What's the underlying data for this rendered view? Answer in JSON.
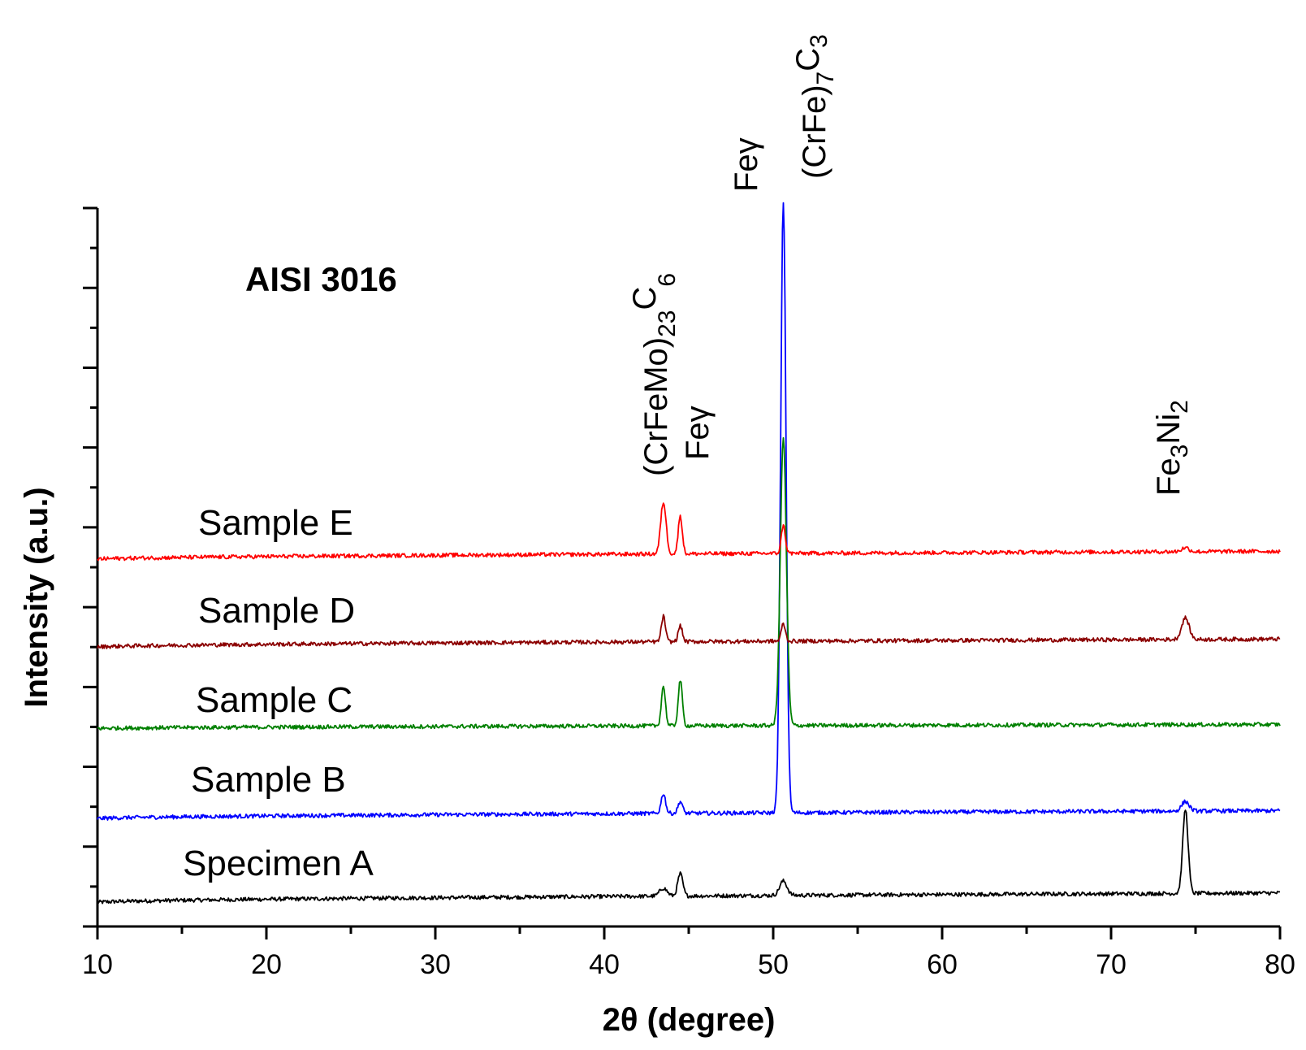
{
  "chart_data": {
    "type": "line",
    "title": "AISI 3016",
    "xlabel": "2θ (degree)",
    "ylabel": "Intensity (a.u.)",
    "xlim": [
      10,
      80
    ],
    "xticks": [
      "10",
      "20",
      "30",
      "40",
      "50",
      "60",
      "70",
      "80"
    ],
    "ylim": [
      0,
      9
    ],
    "y_ticks_labeled": false,
    "grid": false,
    "series": [
      {
        "name": "Specimen A",
        "color": "#000000",
        "baseline_start": 0.3,
        "baseline_end": 0.42,
        "peaks": [
          {
            "x": 43.5,
            "height": 0.1,
            "width": 0.22
          },
          {
            "x": 44.5,
            "height": 0.28,
            "width": 0.15
          },
          {
            "x": 50.6,
            "height": 0.18,
            "width": 0.22
          },
          {
            "x": 74.4,
            "height": 1.05,
            "width": 0.16
          }
        ]
      },
      {
        "name": "Sample B",
        "color": "#0000ff",
        "baseline_start": 1.35,
        "baseline_end": 1.45,
        "peaks": [
          {
            "x": 43.5,
            "height": 0.25,
            "width": 0.13
          },
          {
            "x": 44.5,
            "height": 0.15,
            "width": 0.13
          },
          {
            "x": 50.6,
            "height": 7.65,
            "width": 0.16
          },
          {
            "x": 74.4,
            "height": 0.12,
            "width": 0.22
          }
        ]
      },
      {
        "name": "Sample C",
        "color": "#008000",
        "baseline_start": 2.48,
        "baseline_end": 2.53,
        "peaks": [
          {
            "x": 43.5,
            "height": 0.5,
            "width": 0.12
          },
          {
            "x": 44.5,
            "height": 0.57,
            "width": 0.12
          },
          {
            "x": 50.6,
            "height": 3.6,
            "width": 0.18
          }
        ]
      },
      {
        "name": "Sample D",
        "color": "#8b0000",
        "baseline_start": 3.5,
        "baseline_end": 3.6,
        "peaks": [
          {
            "x": 43.5,
            "height": 0.32,
            "width": 0.12
          },
          {
            "x": 44.5,
            "height": 0.2,
            "width": 0.12
          },
          {
            "x": 50.6,
            "height": 0.22,
            "width": 0.12
          },
          {
            "x": 74.4,
            "height": 0.27,
            "width": 0.22
          }
        ]
      },
      {
        "name": "Sample E",
        "color": "#ff0000",
        "baseline_start": 4.6,
        "baseline_end": 4.7,
        "peaks": [
          {
            "x": 43.5,
            "height": 0.65,
            "width": 0.16
          },
          {
            "x": 44.5,
            "height": 0.48,
            "width": 0.12
          },
          {
            "x": 50.6,
            "height": 0.35,
            "width": 0.12
          },
          {
            "x": 74.4,
            "height": 0.05,
            "width": 0.22
          }
        ]
      }
    ],
    "annotations": [
      {
        "main": "(CrFeMo)",
        "sub1": "23",
        "mid": "C",
        "sub2": "6",
        "x": 43.5
      },
      {
        "main": "Feγ",
        "x": 44.7
      },
      {
        "main": "Feγ",
        "x": 49.0
      },
      {
        "main": "(CrFe)",
        "sub1": "7",
        "mid": "C",
        "sub2": "3",
        "x": 52.4
      },
      {
        "main": "Fe",
        "sub1": "3",
        "mid": "Ni",
        "sub2": "2",
        "x": 74.2
      }
    ]
  }
}
